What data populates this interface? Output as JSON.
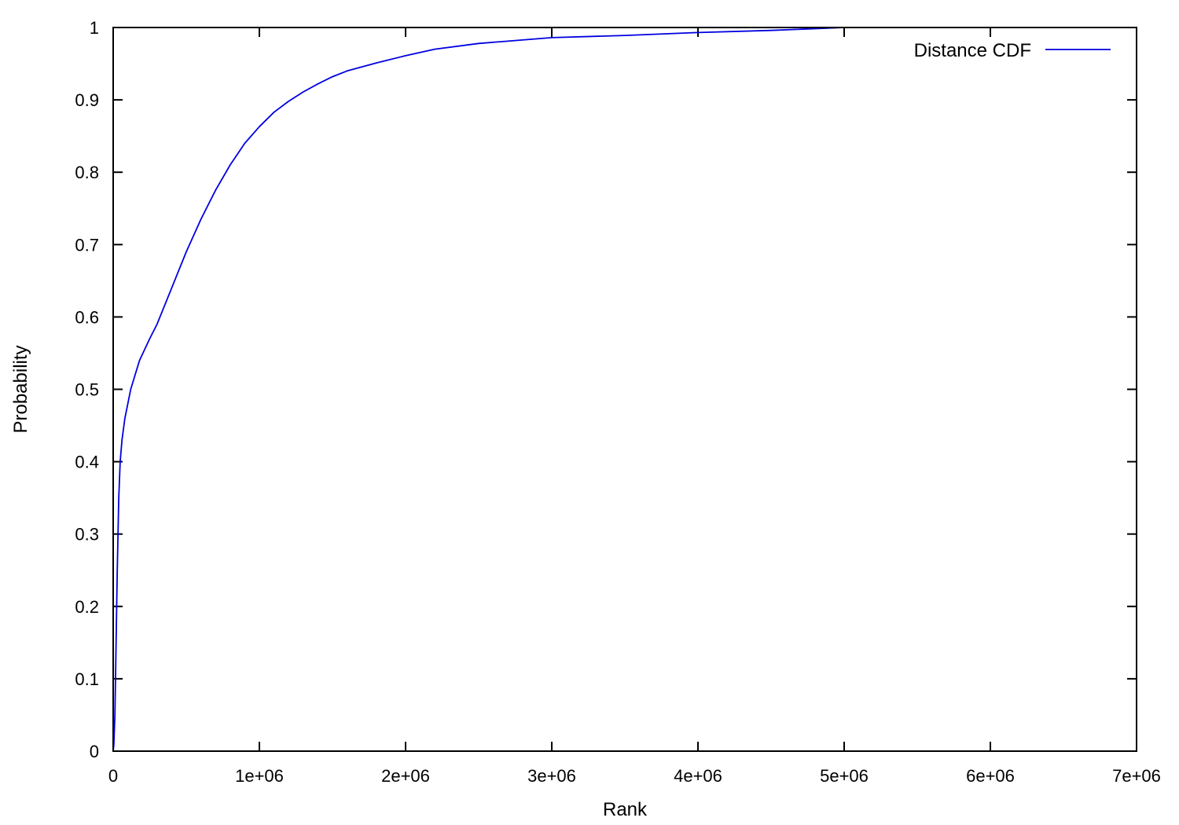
{
  "chart_data": {
    "type": "line",
    "title": "",
    "xlabel": "Rank",
    "ylabel": "Probability",
    "xlim": [
      0,
      7000000
    ],
    "ylim": [
      0,
      1
    ],
    "grid": false,
    "legend_position": "top-right",
    "x_ticks": [
      {
        "value": 0,
        "label": "0"
      },
      {
        "value": 1000000,
        "label": "1e+06"
      },
      {
        "value": 2000000,
        "label": "2e+06"
      },
      {
        "value": 3000000,
        "label": "3e+06"
      },
      {
        "value": 4000000,
        "label": "4e+06"
      },
      {
        "value": 5000000,
        "label": "5e+06"
      },
      {
        "value": 6000000,
        "label": "6e+06"
      },
      {
        "value": 7000000,
        "label": "7e+06"
      }
    ],
    "y_ticks": [
      {
        "value": 0,
        "label": "0"
      },
      {
        "value": 0.1,
        "label": "0.1"
      },
      {
        "value": 0.2,
        "label": "0.2"
      },
      {
        "value": 0.3,
        "label": "0.3"
      },
      {
        "value": 0.4,
        "label": "0.4"
      },
      {
        "value": 0.5,
        "label": "0.5"
      },
      {
        "value": 0.6,
        "label": "0.6"
      },
      {
        "value": 0.7,
        "label": "0.7"
      },
      {
        "value": 0.8,
        "label": "0.8"
      },
      {
        "value": 0.9,
        "label": "0.9"
      },
      {
        "value": 1,
        "label": "1"
      }
    ],
    "series": [
      {
        "name": "Distance CDF",
        "color": "#0000e0",
        "points": [
          [
            0,
            0.0
          ],
          [
            5000,
            0.01
          ],
          [
            12000,
            0.05
          ],
          [
            20000,
            0.15
          ],
          [
            28000,
            0.25
          ],
          [
            38000,
            0.35
          ],
          [
            48000,
            0.4
          ],
          [
            60000,
            0.43
          ],
          [
            80000,
            0.46
          ],
          [
            120000,
            0.5
          ],
          [
            180000,
            0.54
          ],
          [
            250000,
            0.57
          ],
          [
            300000,
            0.59
          ],
          [
            400000,
            0.64
          ],
          [
            500000,
            0.69
          ],
          [
            600000,
            0.735
          ],
          [
            700000,
            0.775
          ],
          [
            800000,
            0.81
          ],
          [
            900000,
            0.84
          ],
          [
            1000000,
            0.863
          ],
          [
            1100000,
            0.883
          ],
          [
            1200000,
            0.898
          ],
          [
            1300000,
            0.911
          ],
          [
            1400000,
            0.922
          ],
          [
            1500000,
            0.932
          ],
          [
            1600000,
            0.94
          ],
          [
            1800000,
            0.951
          ],
          [
            2000000,
            0.961
          ],
          [
            2200000,
            0.97
          ],
          [
            2500000,
            0.978
          ],
          [
            3000000,
            0.986
          ],
          [
            3500000,
            0.989
          ],
          [
            4000000,
            0.993
          ],
          [
            4500000,
            0.996
          ],
          [
            5000000,
            1.0
          ]
        ]
      }
    ]
  }
}
